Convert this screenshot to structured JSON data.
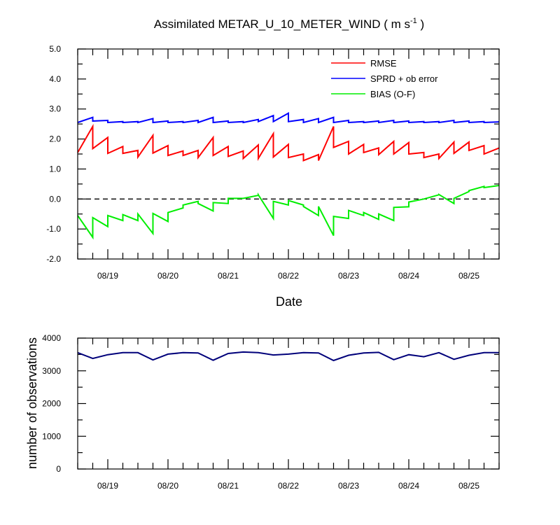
{
  "chart_data": [
    {
      "type": "line",
      "title": "Assimilated METAR_U_10_METER_WIND ( m s",
      "title_sup": "-1",
      "title_close": " )",
      "xlabel": "Date",
      "ylabel": "",
      "ylim": [
        -2.0,
        5.0
      ],
      "yticks": [
        "-2.0",
        "-1.0",
        "0.0",
        "1.0",
        "2.0",
        "3.0",
        "4.0",
        "5.0"
      ],
      "xlim": [
        18.5,
        25.5
      ],
      "xticks": [
        "08/19",
        "08/20",
        "08/21",
        "08/22",
        "08/23",
        "08/24",
        "08/25"
      ],
      "grid": false,
      "legend": "top-right",
      "zero_line": "dashed",
      "series": [
        {
          "name": "RMSE",
          "color": "#ff0000",
          "points": [
            [
              18.5,
              1.55
            ],
            [
              18.75,
              2.42
            ],
            [
              18.75,
              1.68
            ],
            [
              19.0,
              2.05
            ],
            [
              19.0,
              1.52
            ],
            [
              19.25,
              1.75
            ],
            [
              19.25,
              1.52
            ],
            [
              19.5,
              1.62
            ],
            [
              19.5,
              1.4
            ],
            [
              19.75,
              2.12
            ],
            [
              19.75,
              1.53
            ],
            [
              20.0,
              1.78
            ],
            [
              20.0,
              1.45
            ],
            [
              20.25,
              1.6
            ],
            [
              20.25,
              1.45
            ],
            [
              20.5,
              1.62
            ],
            [
              20.5,
              1.38
            ],
            [
              20.75,
              2.05
            ],
            [
              20.75,
              1.45
            ],
            [
              21.0,
              1.75
            ],
            [
              21.0,
              1.42
            ],
            [
              21.25,
              1.6
            ],
            [
              21.25,
              1.35
            ],
            [
              21.5,
              1.8
            ],
            [
              21.5,
              1.35
            ],
            [
              21.75,
              2.18
            ],
            [
              21.75,
              1.4
            ],
            [
              22.0,
              1.82
            ],
            [
              22.0,
              1.38
            ],
            [
              22.25,
              1.5
            ],
            [
              22.25,
              1.28
            ],
            [
              22.5,
              1.48
            ],
            [
              22.5,
              1.28
            ],
            [
              22.75,
              2.42
            ],
            [
              22.75,
              1.72
            ],
            [
              23.0,
              1.92
            ],
            [
              23.0,
              1.5
            ],
            [
              23.25,
              1.82
            ],
            [
              23.25,
              1.55
            ],
            [
              23.5,
              1.7
            ],
            [
              23.5,
              1.48
            ],
            [
              23.75,
              1.92
            ],
            [
              23.75,
              1.5
            ],
            [
              24.0,
              1.88
            ],
            [
              24.0,
              1.5
            ],
            [
              24.25,
              1.55
            ],
            [
              24.25,
              1.38
            ],
            [
              24.5,
              1.5
            ],
            [
              24.5,
              1.35
            ],
            [
              24.75,
              1.9
            ],
            [
              24.75,
              1.52
            ],
            [
              25.0,
              1.9
            ],
            [
              25.0,
              1.62
            ],
            [
              25.25,
              1.78
            ],
            [
              25.25,
              1.5
            ],
            [
              25.5,
              1.7
            ]
          ]
        },
        {
          "name": "SPRD + ob error",
          "color": "#0000ff",
          "points": [
            [
              18.5,
              2.55
            ],
            [
              18.75,
              2.72
            ],
            [
              18.75,
              2.6
            ],
            [
              19.0,
              2.62
            ],
            [
              19.0,
              2.55
            ],
            [
              19.25,
              2.58
            ],
            [
              19.25,
              2.55
            ],
            [
              19.5,
              2.58
            ],
            [
              19.5,
              2.55
            ],
            [
              19.75,
              2.68
            ],
            [
              19.75,
              2.55
            ],
            [
              20.0,
              2.6
            ],
            [
              20.0,
              2.55
            ],
            [
              20.25,
              2.58
            ],
            [
              20.25,
              2.55
            ],
            [
              20.5,
              2.62
            ],
            [
              20.5,
              2.55
            ],
            [
              20.75,
              2.72
            ],
            [
              20.75,
              2.55
            ],
            [
              21.0,
              2.6
            ],
            [
              21.0,
              2.55
            ],
            [
              21.25,
              2.58
            ],
            [
              21.25,
              2.55
            ],
            [
              21.5,
              2.65
            ],
            [
              21.5,
              2.58
            ],
            [
              21.75,
              2.78
            ],
            [
              21.75,
              2.58
            ],
            [
              22.0,
              2.86
            ],
            [
              22.0,
              2.58
            ],
            [
              22.25,
              2.65
            ],
            [
              22.25,
              2.55
            ],
            [
              22.5,
              2.68
            ],
            [
              22.5,
              2.55
            ],
            [
              22.75,
              2.72
            ],
            [
              22.75,
              2.55
            ],
            [
              23.0,
              2.62
            ],
            [
              23.0,
              2.55
            ],
            [
              23.25,
              2.58
            ],
            [
              23.25,
              2.55
            ],
            [
              23.5,
              2.6
            ],
            [
              23.5,
              2.55
            ],
            [
              23.75,
              2.62
            ],
            [
              23.75,
              2.55
            ],
            [
              24.0,
              2.6
            ],
            [
              24.0,
              2.55
            ],
            [
              24.25,
              2.58
            ],
            [
              24.25,
              2.55
            ],
            [
              24.5,
              2.58
            ],
            [
              24.5,
              2.55
            ],
            [
              24.75,
              2.62
            ],
            [
              24.75,
              2.55
            ],
            [
              25.0,
              2.6
            ],
            [
              25.0,
              2.55
            ],
            [
              25.25,
              2.58
            ],
            [
              25.25,
              2.55
            ],
            [
              25.5,
              2.57
            ]
          ]
        },
        {
          "name": "BIAS (O-F)",
          "color": "#00ee00",
          "points": [
            [
              18.5,
              -0.55
            ],
            [
              18.75,
              -1.28
            ],
            [
              18.75,
              -0.62
            ],
            [
              19.0,
              -0.92
            ],
            [
              19.0,
              -0.55
            ],
            [
              19.25,
              -0.72
            ],
            [
              19.25,
              -0.52
            ],
            [
              19.5,
              -0.72
            ],
            [
              19.5,
              -0.5
            ],
            [
              19.75,
              -1.15
            ],
            [
              19.75,
              -0.48
            ],
            [
              20.0,
              -0.75
            ],
            [
              20.0,
              -0.45
            ],
            [
              20.25,
              -0.3
            ],
            [
              20.25,
              -0.2
            ],
            [
              20.5,
              -0.08
            ],
            [
              20.5,
              -0.15
            ],
            [
              20.75,
              -0.4
            ],
            [
              20.75,
              -0.12
            ],
            [
              21.0,
              -0.15
            ],
            [
              21.0,
              0.02
            ],
            [
              21.25,
              0.02
            ],
            [
              21.25,
              0.02
            ],
            [
              21.5,
              0.12
            ],
            [
              21.5,
              0.14
            ],
            [
              21.75,
              -0.65
            ],
            [
              21.75,
              -0.08
            ],
            [
              22.0,
              -0.2
            ],
            [
              22.0,
              -0.05
            ],
            [
              22.25,
              -0.2
            ],
            [
              22.25,
              -0.25
            ],
            [
              22.5,
              -0.55
            ],
            [
              22.5,
              -0.25
            ],
            [
              22.75,
              -1.22
            ],
            [
              22.75,
              -0.58
            ],
            [
              23.0,
              -0.65
            ],
            [
              23.0,
              -0.38
            ],
            [
              23.25,
              -0.55
            ],
            [
              23.25,
              -0.45
            ],
            [
              23.5,
              -0.68
            ],
            [
              23.5,
              -0.5
            ],
            [
              23.75,
              -0.72
            ],
            [
              23.75,
              -0.28
            ],
            [
              24.0,
              -0.26
            ],
            [
              24.0,
              -0.1
            ],
            [
              24.25,
              0.0
            ],
            [
              24.25,
              0.0
            ],
            [
              24.5,
              0.14
            ],
            [
              24.5,
              0.15
            ],
            [
              24.75,
              -0.15
            ],
            [
              24.75,
              0.02
            ],
            [
              25.0,
              0.25
            ],
            [
              25.0,
              0.28
            ],
            [
              25.25,
              0.42
            ],
            [
              25.25,
              0.38
            ],
            [
              25.5,
              0.45
            ]
          ]
        }
      ]
    },
    {
      "type": "line",
      "title": "",
      "xlabel": "",
      "ylabel": "number of observations",
      "ylim": [
        0,
        4500
      ],
      "yticks": [
        "0",
        "1000",
        "2000",
        "3000",
        "4000"
      ],
      "xlim": [
        18.5,
        25.5
      ],
      "xticks": [
        "08/19",
        "08/20",
        "08/21",
        "08/22",
        "08/23",
        "08/24",
        "08/25"
      ],
      "grid": false,
      "series": [
        {
          "color": "#00007a",
          "points": [
            [
              18.5,
              4000
            ],
            [
              18.75,
              3800
            ],
            [
              19.0,
              3930
            ],
            [
              19.25,
              4000
            ],
            [
              19.5,
              4000
            ],
            [
              19.75,
              3750
            ],
            [
              20.0,
              3950
            ],
            [
              20.25,
              4000
            ],
            [
              20.5,
              3990
            ],
            [
              20.75,
              3740
            ],
            [
              21.0,
              3970
            ],
            [
              21.25,
              4020
            ],
            [
              21.5,
              4000
            ],
            [
              21.75,
              3920
            ],
            [
              22.0,
              3950
            ],
            [
              22.25,
              4000
            ],
            [
              22.5,
              3990
            ],
            [
              22.75,
              3730
            ],
            [
              23.0,
              3910
            ],
            [
              23.25,
              3990
            ],
            [
              23.5,
              4010
            ],
            [
              23.75,
              3760
            ],
            [
              24.0,
              3930
            ],
            [
              24.25,
              3860
            ],
            [
              24.5,
              4000
            ],
            [
              24.75,
              3770
            ],
            [
              25.0,
              3910
            ],
            [
              25.25,
              4000
            ],
            [
              25.5,
              4000
            ]
          ]
        }
      ]
    }
  ]
}
